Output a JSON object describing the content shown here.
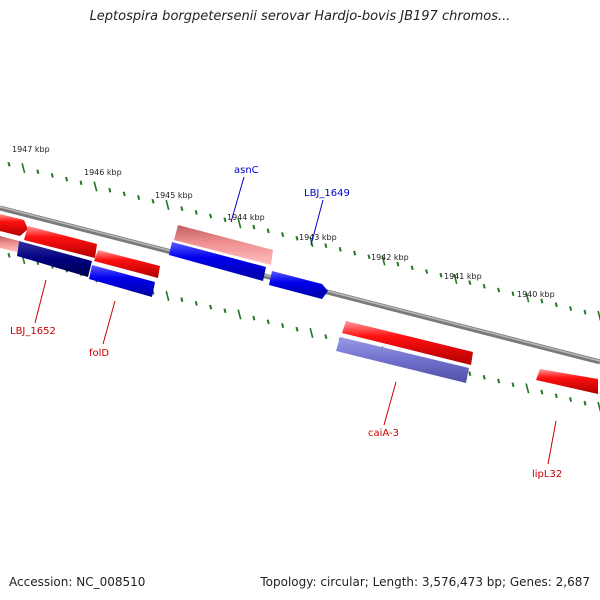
{
  "title": "Leptospira borgpetersenii serovar Hardjo-bovis JB197 chromos...",
  "footer": {
    "accession": "Accession: NC_008510",
    "topology": "Topology: circular; Length: 3,576,473 bp; Genes: 2,687"
  },
  "scale_labels": [
    "1947 kbp",
    "1946 kbp",
    "1945 kbp",
    "1944 kbp",
    "1943 kbp",
    "1942 kbp",
    "1941 kbp",
    "1940 kbp"
  ],
  "gene_labels": {
    "asnC": "asnC",
    "lbj1649": "LBJ_1649",
    "lbj1652": "LBJ_1652",
    "folD": "folD",
    "caiA3": "caiA-3",
    "lipL32": "lipL32"
  },
  "colors": {
    "forward_label": "#0000cc",
    "reverse_label": "#cc0000",
    "backbone": "#8a8a8a",
    "ticks": "#227722",
    "red_feature": "#ee0000",
    "pink_feature": "#ee8888",
    "blue_feature": "#0000ee",
    "navy_feature": "#000080",
    "lavender_feature": "#7777cc"
  }
}
